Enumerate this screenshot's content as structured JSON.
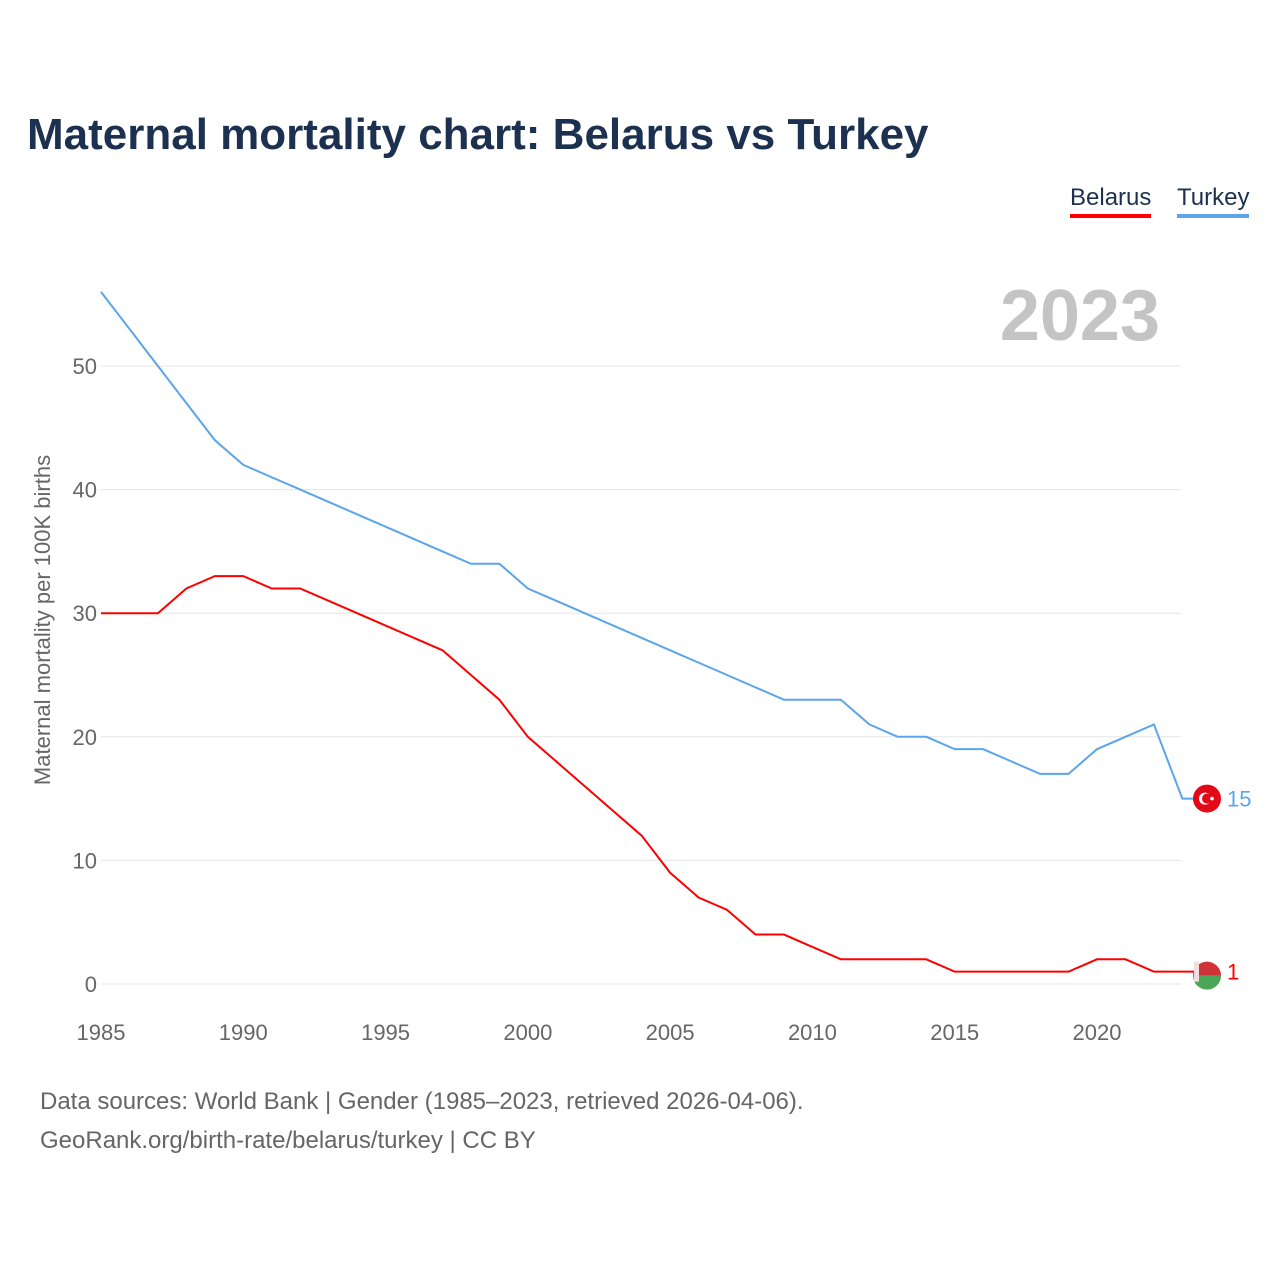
{
  "title": "Maternal mortality chart: Belarus vs Turkey",
  "year_label": "2023",
  "footer": {
    "line1": "Data sources: World Bank | Gender (1985–2023, retrieved 2026-04-06).",
    "line2": "GeoRank.org/birth-rate/belarus/turkey | CC BY"
  },
  "chart_data": {
    "type": "line",
    "title": "Maternal mortality chart: Belarus vs Turkey",
    "xlabel": "",
    "ylabel": "Maternal mortality per 100K births",
    "xlim": [
      1985,
      2023
    ],
    "ylim": [
      0,
      55
    ],
    "xticks": [
      1985,
      1990,
      1995,
      2000,
      2005,
      2010,
      2015,
      2020
    ],
    "yticks": [
      0,
      10,
      20,
      30,
      40,
      50
    ],
    "x": [
      1985,
      1986,
      1987,
      1988,
      1989,
      1990,
      1991,
      1992,
      1993,
      1994,
      1995,
      1996,
      1997,
      1998,
      1999,
      2000,
      2001,
      2002,
      2003,
      2004,
      2005,
      2006,
      2007,
      2008,
      2009,
      2010,
      2011,
      2012,
      2013,
      2014,
      2015,
      2016,
      2017,
      2018,
      2019,
      2020,
      2021,
      2022,
      2023
    ],
    "legend_placement": "top-right",
    "series": [
      {
        "name": "Belarus",
        "color": "#ff0000",
        "end_label": "1",
        "values": [
          30,
          30,
          30,
          32,
          33,
          33,
          32,
          32,
          31,
          30,
          29,
          28,
          27,
          25,
          23,
          20,
          18,
          16,
          14,
          12,
          9,
          7,
          6,
          4,
          4,
          3,
          2,
          2,
          2,
          2,
          1,
          1,
          1,
          1,
          1,
          2,
          2,
          1,
          1
        ]
      },
      {
        "name": "Turkey",
        "color": "#5aa5ec",
        "end_label": "15",
        "values": [
          56,
          53,
          50,
          47,
          44,
          42,
          41,
          40,
          39,
          38,
          37,
          36,
          35,
          34,
          34,
          32,
          31,
          30,
          29,
          28,
          27,
          26,
          25,
          24,
          23,
          23,
          23,
          21,
          20,
          20,
          19,
          19,
          18,
          17,
          17,
          19,
          20,
          21,
          15
        ]
      }
    ]
  }
}
